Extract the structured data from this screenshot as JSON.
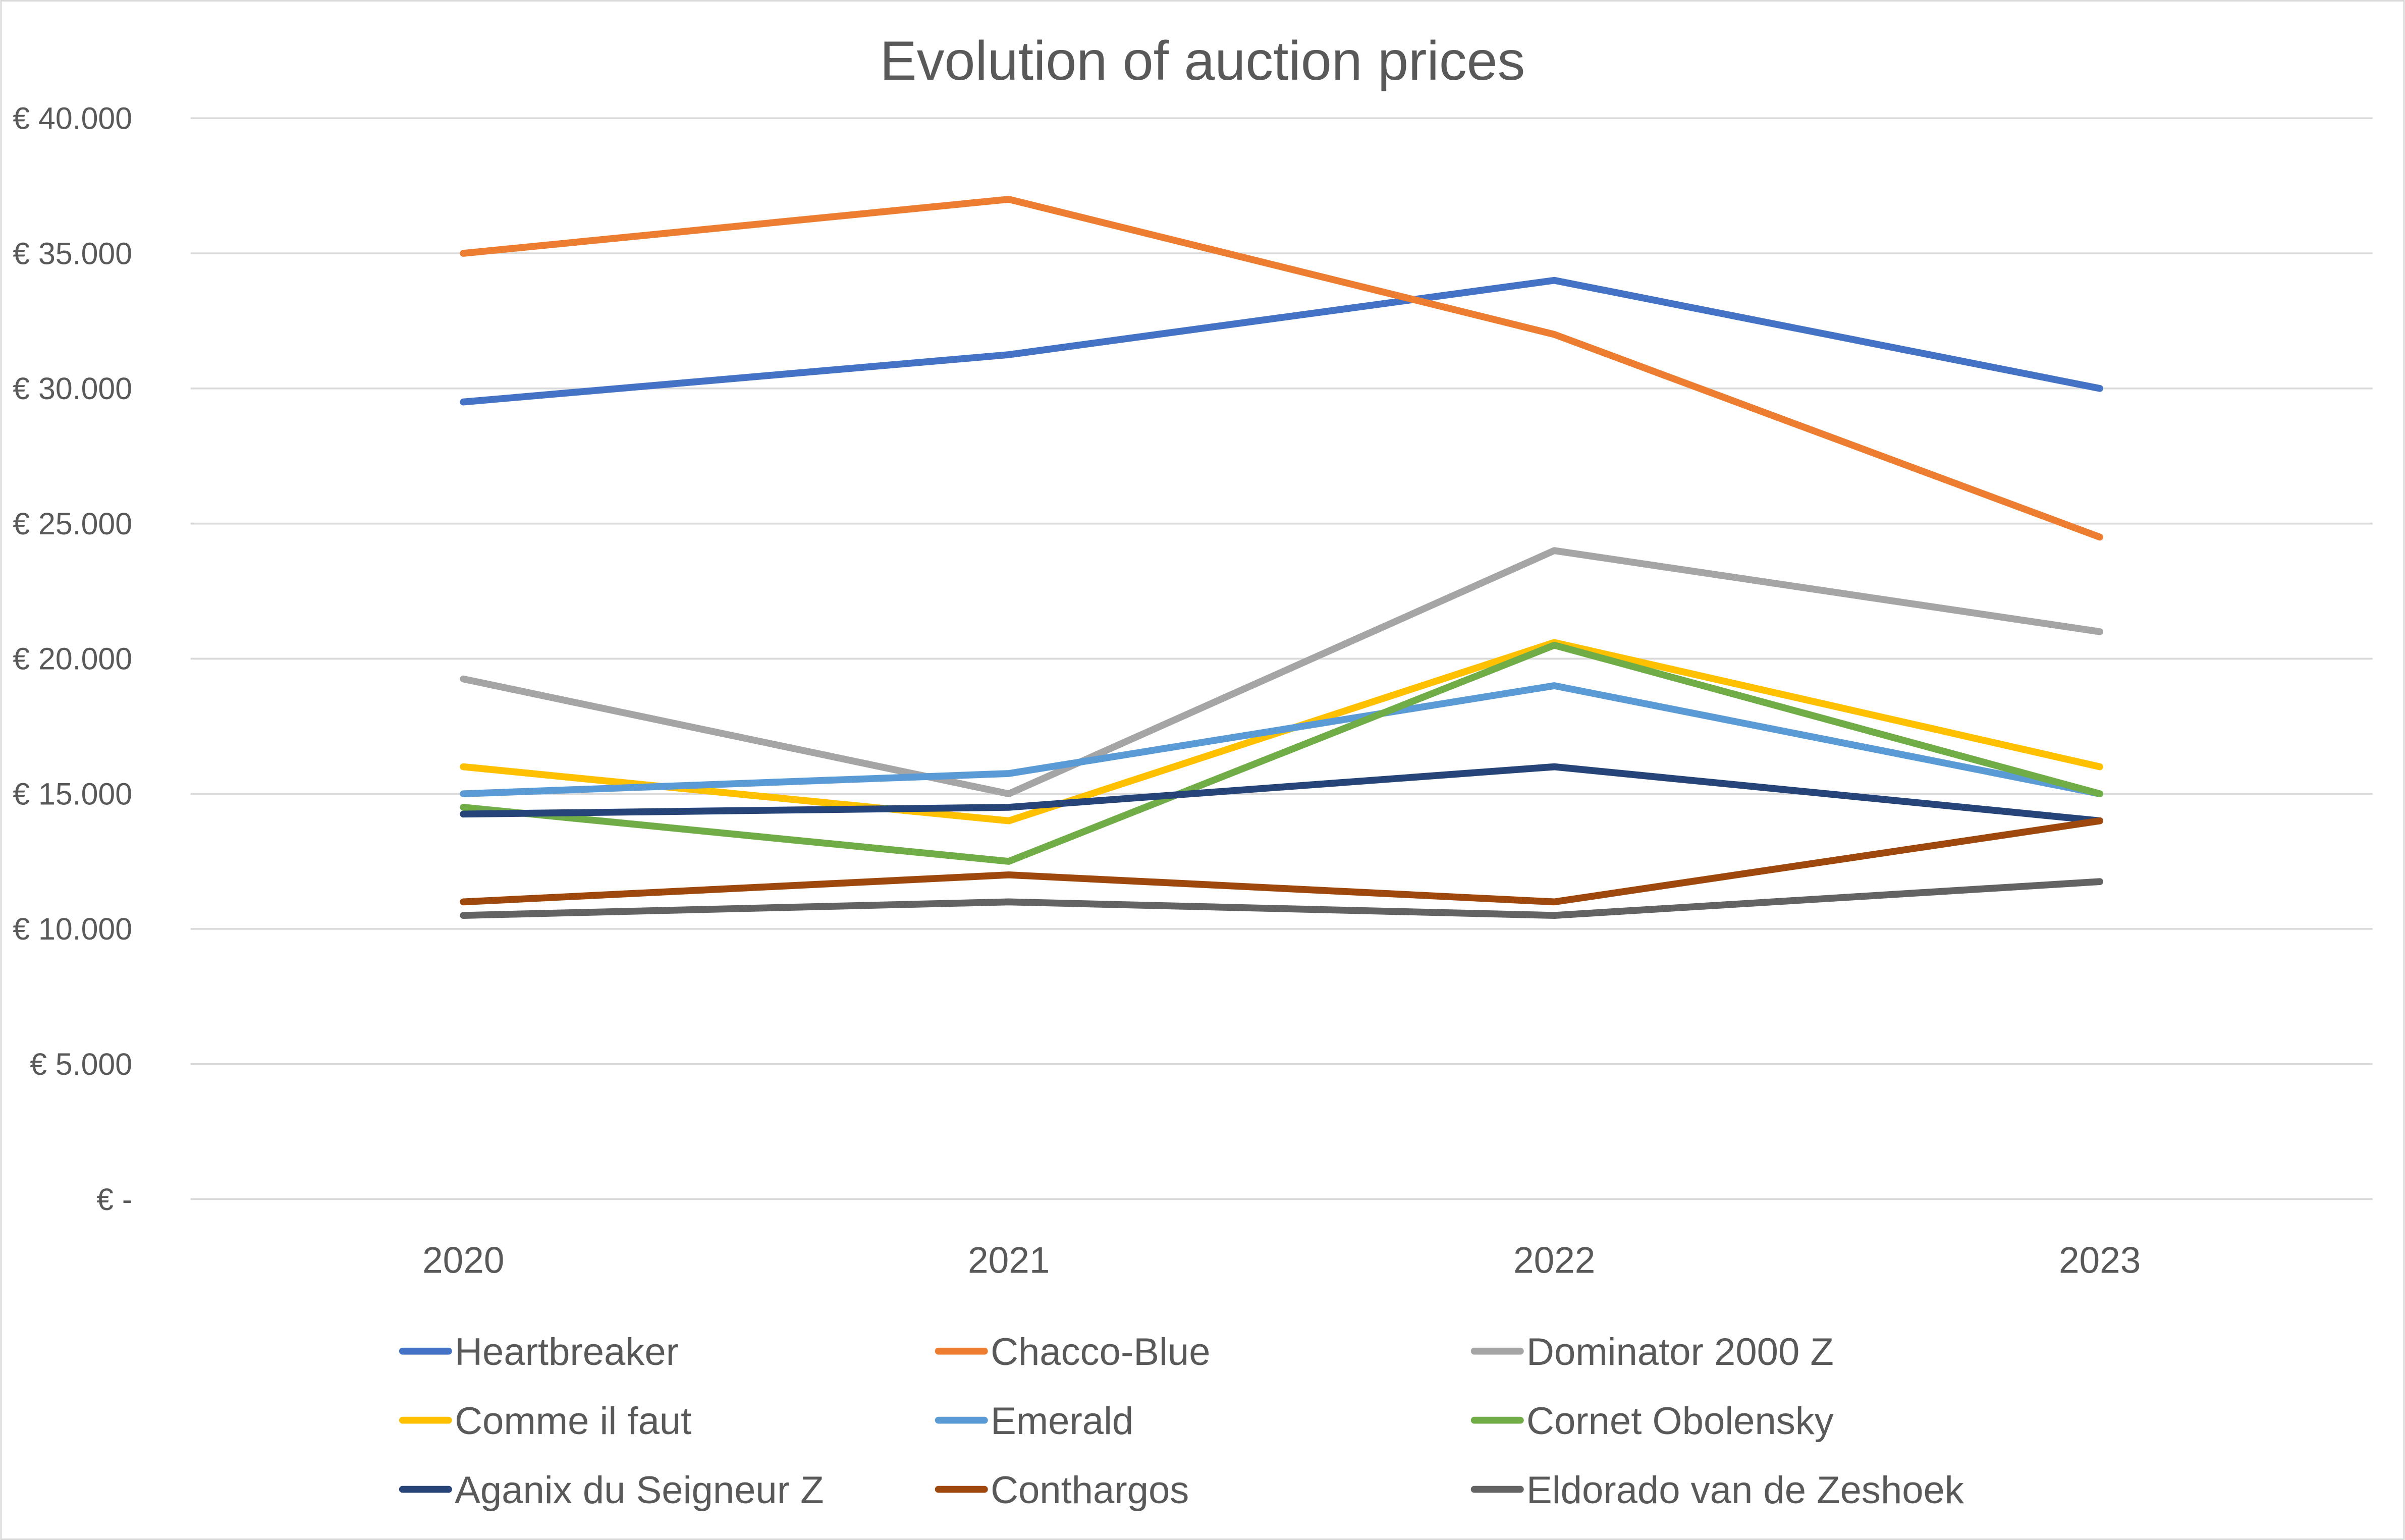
{
  "chart_data": {
    "type": "line",
    "title": "Evolution of auction prices",
    "xlabel": "",
    "ylabel": "",
    "categories": [
      "2020",
      "2021",
      "2022",
      "2023"
    ],
    "ylim": [
      0,
      40000
    ],
    "yticks": [
      0,
      5000,
      10000,
      15000,
      20000,
      25000,
      30000,
      35000,
      40000
    ],
    "ytick_labels": [
      "€ -",
      "€ 5.000",
      "€ 10.000",
      "€ 15.000",
      "€ 20.000",
      "€ 25.000",
      "€ 30.000",
      "€ 35.000",
      "€ 40.000"
    ],
    "grid": "horizontal",
    "legend_position": "bottom",
    "series": [
      {
        "name": "Heartbreaker",
        "color": "#4472C4",
        "values": [
          29500,
          31250,
          34000,
          30000
        ]
      },
      {
        "name": "Chacco-Blue",
        "color": "#ED7D31",
        "values": [
          35000,
          37000,
          32000,
          24500
        ]
      },
      {
        "name": "Dominator 2000 Z",
        "color": "#A5A5A5",
        "values": [
          19250,
          15000,
          24000,
          21000
        ]
      },
      {
        "name": "Comme il faut",
        "color": "#FFC000",
        "values": [
          16000,
          14000,
          20600,
          16000
        ]
      },
      {
        "name": "Emerald",
        "color": "#5B9BD5",
        "values": [
          15000,
          15750,
          19000,
          15000
        ]
      },
      {
        "name": "Cornet Obolensky",
        "color": "#70AD47",
        "values": [
          14500,
          12500,
          20500,
          15000
        ]
      },
      {
        "name": "Aganix du Seigneur Z",
        "color": "#264478",
        "values": [
          14250,
          14500,
          16000,
          14000
        ]
      },
      {
        "name": "Conthargos",
        "color": "#9E480E",
        "values": [
          11000,
          12000,
          11000,
          14000
        ]
      },
      {
        "name": "Eldorado van de Zeshoek",
        "color": "#636363",
        "values": [
          10500,
          11000,
          10500,
          11750
        ]
      }
    ]
  }
}
